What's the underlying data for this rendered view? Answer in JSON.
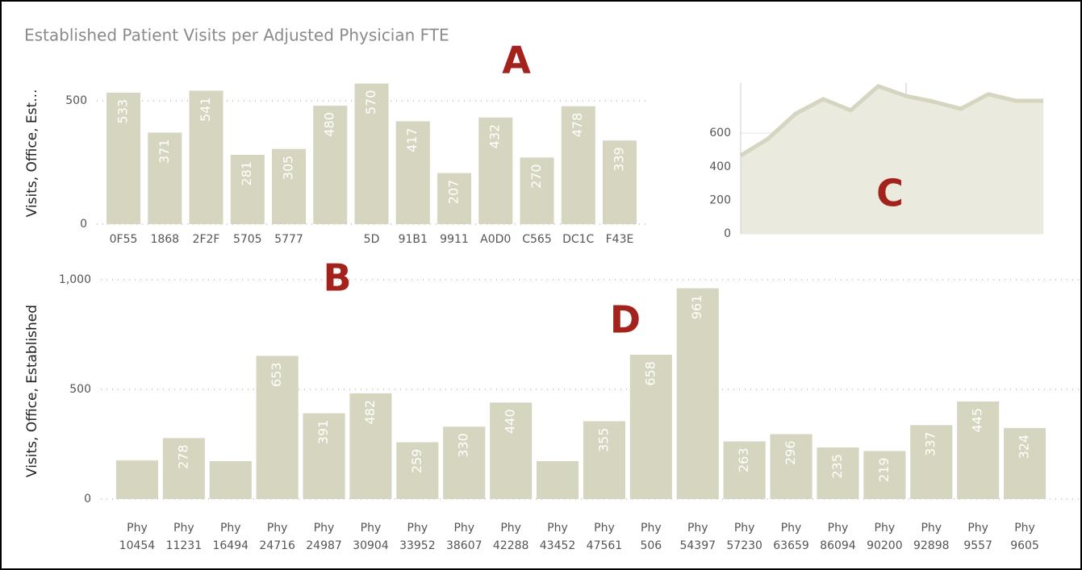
{
  "title": "Established Patient Visits per Adjusted Physician FTE",
  "annotations": [
    "A",
    "B",
    "C",
    "D"
  ],
  "chart_data": [
    {
      "type": "bar",
      "y_label": "Visits, Office, Est...",
      "categories": [
        "0F55",
        "1868",
        "2F2F",
        "5705",
        "5777",
        null,
        "5D",
        "91B1",
        "9911",
        "A0D0",
        "C565",
        "DC1C",
        "F43E"
      ],
      "values": [
        533,
        371,
        541,
        281,
        305,
        480,
        570,
        417,
        207,
        432,
        270,
        478,
        339
      ],
      "color": "#d6d5bf",
      "ylim": [
        0,
        600
      ],
      "yticks": [
        0,
        500
      ],
      "grid": true
    },
    {
      "type": "area",
      "categories": [
        null,
        null,
        null,
        null,
        null,
        null,
        null,
        null,
        null,
        null,
        null,
        null
      ],
      "values": [
        466,
        567,
        716,
        803,
        736,
        880,
        822,
        788,
        745,
        832,
        793,
        793
      ],
      "color": "#d6d5bf",
      "ylim": [
        0,
        900
      ],
      "yticks": [
        0,
        200,
        400,
        600
      ],
      "grid": true
    },
    {
      "type": "bar",
      "y_label": "Visits, Office, Established",
      "categories": [
        "Phy 10454",
        "Phy 11231",
        "Phy 16494",
        "Phy 24716",
        "Phy 24987",
        "Phy 30904",
        "Phy 33952",
        "Phy 38607",
        "Phy 42288",
        "Phy 43452",
        "Phy 47561",
        "Phy 506",
        "Phy 54397",
        "Phy 57230",
        "Phy 63659",
        "Phy 86094",
        "Phy 90200",
        "Phy 92898",
        "Phy 9557",
        "Phy 9605"
      ],
      "values": [
        176,
        278,
        173,
        653,
        391,
        482,
        259,
        330,
        440,
        173,
        355,
        658,
        961,
        263,
        296,
        235,
        219,
        337,
        445,
        324
      ],
      "value_labels": [
        null,
        "278",
        null,
        "653",
        "391",
        "482",
        "259",
        "330",
        "440",
        null,
        "355",
        "658",
        "961",
        "263",
        "296",
        "235",
        "219",
        "337",
        "445",
        "324"
      ],
      "color": "#d6d5bf",
      "ylim": [
        0,
        1050
      ],
      "yticks": [
        0,
        500,
        {
          "value": 1000,
          "label": "1,000"
        }
      ],
      "grid": true
    }
  ]
}
